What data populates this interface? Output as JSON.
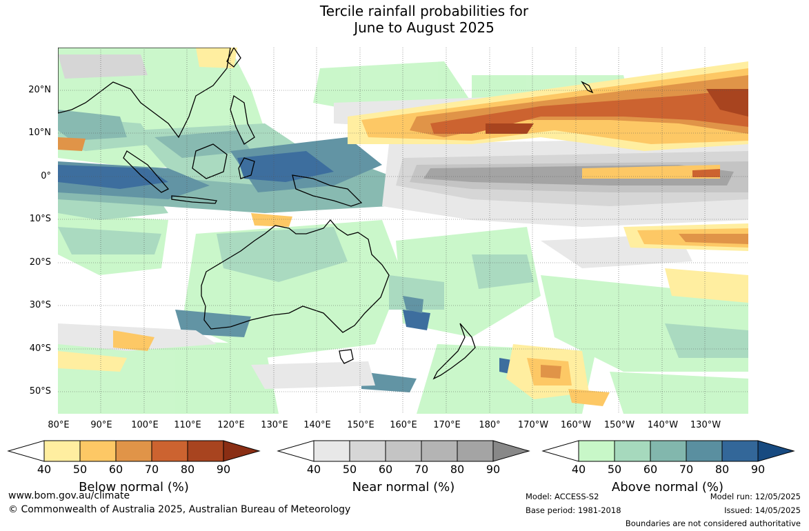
{
  "title": {
    "line1": "Tercile rainfall probabilities for",
    "line2": "June to August 2025"
  },
  "map": {
    "lat_labels": [
      "20°N",
      "10°N",
      "0°",
      "10°S",
      "20°S",
      "30°S",
      "40°S",
      "50°S"
    ],
    "lon_labels": [
      "80°E",
      "90°E",
      "100°E",
      "110°E",
      "120°E",
      "130°E",
      "140°E",
      "150°E",
      "160°E",
      "170°E",
      "180°",
      "170°W",
      "160°W",
      "150°W",
      "140°W",
      "130°W"
    ]
  },
  "colorbars": {
    "ticks": [
      "40",
      "50",
      "60",
      "70",
      "80",
      "90"
    ],
    "below": {
      "title": "Below normal (%)",
      "colors": [
        "#ffeea0",
        "#fdc865",
        "#e09448",
        "#cc6330",
        "#a8441f",
        "#8a2e14"
      ]
    },
    "near": {
      "title": "Near normal (%)",
      "colors": [
        "#e8e8e8",
        "#d6d6d6",
        "#c4c4c4",
        "#b4b4b4",
        "#a4a4a4",
        "#888888"
      ]
    },
    "above": {
      "title": "Above normal (%)",
      "colors": [
        "#c8f7c8",
        "#a6d9bd",
        "#82b7ad",
        "#5a8fa0",
        "#336799",
        "#174a80"
      ]
    }
  },
  "footer": {
    "url": "www.bom.gov.au/climate",
    "copyright": "© Commonwealth of Australia 2025, Australian Bureau of Meteorology",
    "model": "Model: ACCESS-S2",
    "base_period": "Base period: 1981-2018",
    "model_run": "Model run: 12/05/2025",
    "issued": "Issued: 14/05/2025",
    "disclaimer": "Boundaries are not considered authoritative"
  }
}
